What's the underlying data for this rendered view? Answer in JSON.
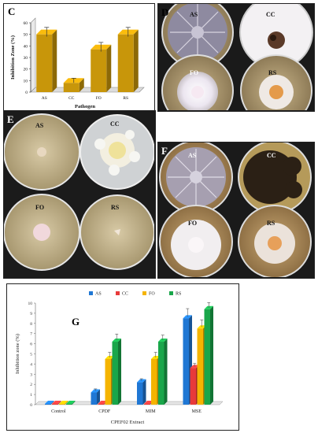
{
  "panels": {
    "c": {
      "letter": "C"
    },
    "d": {
      "letter": "D",
      "dishes": [
        "AS",
        "CC",
        "FO",
        "RS"
      ]
    },
    "e": {
      "letter": "E",
      "dishes": [
        "AS",
        "CC",
        "FO",
        "RS"
      ]
    },
    "f": {
      "letter": "F",
      "dishes": [
        "AS",
        "CC",
        "FO",
        "RS"
      ]
    },
    "g": {
      "letter": "G"
    }
  },
  "chart_data": [
    {
      "type": "bar",
      "panel": "C",
      "categories": [
        "AS",
        "CC",
        "FO",
        "RS"
      ],
      "values": [
        50,
        8,
        37,
        50
      ],
      "errors": [
        4,
        2,
        4,
        4
      ],
      "xlabel": "Pathogen",
      "ylabel": "Inhibition Zone (%)",
      "ylim": [
        0,
        60
      ],
      "yticks": [
        0,
        10,
        20,
        30,
        40,
        50,
        60
      ],
      "bar_color": "#c8960a",
      "style": "3d"
    },
    {
      "type": "bar",
      "panel": "G",
      "categories": [
        "Control",
        "CPDF",
        "MIM",
        "MSE"
      ],
      "series": [
        {
          "name": "AS",
          "values": [
            0,
            1.2,
            2.2,
            8.5
          ],
          "errors": [
            0,
            0.2,
            0.2,
            0.8
          ],
          "color": "#1f77d4"
        },
        {
          "name": "CC",
          "values": [
            0,
            0,
            0,
            3.6
          ],
          "errors": [
            0,
            0,
            0,
            0.3
          ],
          "color": "#e83a3a"
        },
        {
          "name": "FO",
          "values": [
            0,
            4.5,
            4.5,
            7.5
          ],
          "errors": [
            0,
            0.5,
            0.5,
            0.7
          ],
          "color": "#f5b400"
        },
        {
          "name": "RS",
          "values": [
            0,
            6.2,
            6.2,
            9.4
          ],
          "errors": [
            0,
            0.6,
            0.5,
            0.5
          ],
          "color": "#19a64a"
        }
      ],
      "xlabel": "CPEF02 Extract",
      "ylabel": "Inhibition zone (%)",
      "ylim": [
        0,
        10
      ],
      "yticks": [
        0,
        1,
        2,
        3,
        4,
        5,
        6,
        7,
        8,
        9,
        10
      ],
      "legend": "top-center"
    }
  ]
}
